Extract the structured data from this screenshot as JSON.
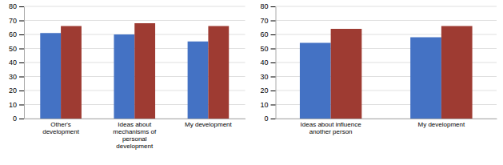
{
  "chart_data": [
    {
      "type": "bar",
      "categories": [
        "Other's\ndevelopment",
        "Ideas about\nmechanisms of\npersonal\ndevelopment",
        "My development"
      ],
      "series": [
        {
          "color": "#4472C4",
          "values": [
            61,
            60,
            55
          ]
        },
        {
          "color": "#9E3B32",
          "values": [
            66,
            68,
            66
          ]
        }
      ],
      "ylim": [
        0,
        80
      ],
      "yticks": [
        0,
        10,
        20,
        30,
        40,
        50,
        60,
        70,
        80
      ],
      "grid": true
    },
    {
      "type": "bar",
      "categories": [
        "Ideas about influence\nanother person",
        "My development"
      ],
      "series": [
        {
          "color": "#4472C4",
          "values": [
            54,
            58
          ]
        },
        {
          "color": "#9E3B32",
          "values": [
            64,
            66
          ]
        }
      ],
      "ylim": [
        0,
        80
      ],
      "yticks": [
        0,
        10,
        20,
        30,
        40,
        50,
        60,
        70,
        80
      ],
      "grid": true
    }
  ]
}
